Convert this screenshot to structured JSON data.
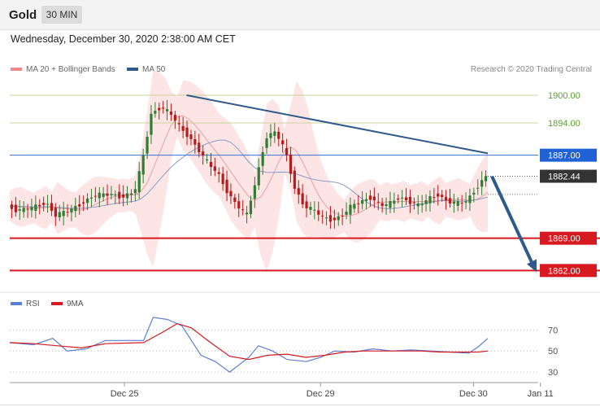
{
  "header": {
    "asset": "Gold",
    "timeframe": "30 MIN"
  },
  "datetime": "Wednesday, December 30, 2020 2:38:00 AM CET",
  "legend": [
    {
      "label": "MA 20 + Bollinger Bands",
      "color": "#f08a8a"
    },
    {
      "label": "MA 50",
      "color": "#2e5a8c"
    }
  ],
  "credit": "Research © 2020 Trading Central",
  "indicator_legend": [
    {
      "label": "RSI",
      "color": "#5b7fd4"
    },
    {
      "label": "9MA",
      "color": "#d71920"
    }
  ],
  "colors": {
    "up": "#2e7d32",
    "down": "#b71c1c",
    "band": "#fde0e0",
    "trend": "#2e5a8c"
  },
  "chart_data": [
    {
      "type": "candlestick",
      "title": "",
      "ylim": [
        1858,
        1903
      ],
      "x_ticks": [
        "Dec 25",
        "Dec 29",
        "Dec 30",
        "Jan 11"
      ],
      "current_price": {
        "value": 1882.44,
        "label": "1882.44"
      },
      "levels": [
        {
          "label": "1900.00",
          "value": 1900.0,
          "kind": "resistance-green"
        },
        {
          "label": "1894.00",
          "value": 1894.0,
          "kind": "resistance-green"
        },
        {
          "label": "1887.00",
          "value": 1887.0,
          "kind": "pivot-blue"
        },
        {
          "label": "1869.00",
          "value": 1869.0,
          "kind": "support-red"
        },
        {
          "label": "1862.00",
          "value": 1862.0,
          "kind": "support-red"
        }
      ],
      "trendline": {
        "from": [
          0.0,
          1900.0
        ],
        "to": [
          1.0,
          1887.4
        ]
      },
      "forecast_arrow": {
        "from": 1882.44,
        "to": 1862.0
      },
      "close_path": [
        [
          0,
          1876
        ],
        [
          0.02,
          1875
        ],
        [
          0.05,
          1875.5
        ],
        [
          0.08,
          1876.8
        ],
        [
          0.1,
          1874
        ],
        [
          0.13,
          1875
        ],
        [
          0.16,
          1877
        ],
        [
          0.18,
          1878.3
        ],
        [
          0.22,
          1878.5
        ],
        [
          0.24,
          1878
        ],
        [
          0.265,
          1879
        ],
        [
          0.28,
          1885
        ],
        [
          0.3,
          1896
        ],
        [
          0.32,
          1897.5
        ],
        [
          0.34,
          1896
        ],
        [
          0.36,
          1893
        ],
        [
          0.38,
          1891
        ],
        [
          0.4,
          1888
        ],
        [
          0.42,
          1885
        ],
        [
          0.44,
          1883
        ],
        [
          0.46,
          1879
        ],
        [
          0.48,
          1876
        ],
        [
          0.5,
          1874
        ],
        [
          0.52,
          1882
        ],
        [
          0.54,
          1891
        ],
        [
          0.56,
          1892
        ],
        [
          0.58,
          1888
        ],
        [
          0.6,
          1880
        ],
        [
          0.62,
          1876
        ],
        [
          0.64,
          1875
        ],
        [
          0.66,
          1873.5
        ],
        [
          0.68,
          1873
        ],
        [
          0.7,
          1874
        ],
        [
          0.72,
          1876
        ],
        [
          0.74,
          1877
        ],
        [
          0.76,
          1878
        ],
        [
          0.78,
          1876
        ],
        [
          0.8,
          1876.5
        ],
        [
          0.82,
          1878
        ],
        [
          0.84,
          1877
        ],
        [
          0.86,
          1876
        ],
        [
          0.88,
          1877.5
        ],
        [
          0.9,
          1878.5
        ],
        [
          0.92,
          1877
        ],
        [
          0.94,
          1876.5
        ],
        [
          0.96,
          1877
        ],
        [
          0.98,
          1880
        ],
        [
          1.0,
          1882.44
        ]
      ]
    },
    {
      "type": "line",
      "title": "",
      "ylim": [
        20,
        85
      ],
      "y_ticks": [
        30,
        50,
        70
      ],
      "series": [
        {
          "name": "RSI",
          "color": "#5b7fd4",
          "values": [
            [
              0,
              58
            ],
            [
              0.05,
              56
            ],
            [
              0.09,
              62
            ],
            [
              0.12,
              50
            ],
            [
              0.16,
              52
            ],
            [
              0.2,
              60
            ],
            [
              0.28,
              60
            ],
            [
              0.3,
              82
            ],
            [
              0.33,
              80
            ],
            [
              0.36,
              74
            ],
            [
              0.38,
              60
            ],
            [
              0.4,
              46
            ],
            [
              0.43,
              40
            ],
            [
              0.46,
              30
            ],
            [
              0.5,
              44
            ],
            [
              0.52,
              55
            ],
            [
              0.55,
              50
            ],
            [
              0.58,
              42
            ],
            [
              0.62,
              40
            ],
            [
              0.65,
              44
            ],
            [
              0.68,
              50
            ],
            [
              0.72,
              49
            ],
            [
              0.76,
              52
            ],
            [
              0.8,
              50
            ],
            [
              0.84,
              51
            ],
            [
              0.88,
              50
            ],
            [
              0.92,
              49
            ],
            [
              0.96,
              48
            ],
            [
              0.98,
              54
            ],
            [
              1.0,
              62
            ]
          ]
        },
        {
          "name": "9MA",
          "color": "#d71920",
          "values": [
            [
              0,
              58
            ],
            [
              0.05,
              57
            ],
            [
              0.1,
              55
            ],
            [
              0.15,
              53
            ],
            [
              0.2,
              57
            ],
            [
              0.28,
              58
            ],
            [
              0.32,
              68
            ],
            [
              0.35,
              76
            ],
            [
              0.38,
              72
            ],
            [
              0.42,
              58
            ],
            [
              0.46,
              45
            ],
            [
              0.5,
              42
            ],
            [
              0.54,
              46
            ],
            [
              0.58,
              47
            ],
            [
              0.62,
              44
            ],
            [
              0.66,
              46
            ],
            [
              0.7,
              49
            ],
            [
              0.74,
              50
            ],
            [
              0.78,
              50
            ],
            [
              0.82,
              50
            ],
            [
              0.86,
              50
            ],
            [
              0.9,
              49
            ],
            [
              0.94,
              49
            ],
            [
              0.98,
              49
            ],
            [
              1.0,
              50
            ]
          ]
        }
      ]
    }
  ]
}
